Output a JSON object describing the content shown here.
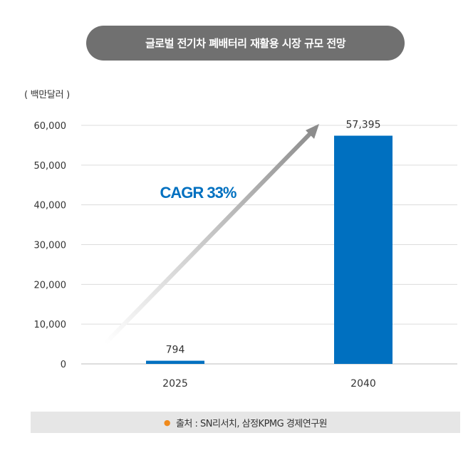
{
  "header": {
    "title": "글로벌 전기차 폐배터리 재활용 시장 규모 전망"
  },
  "unit_label": "( 백만달러 )",
  "annotation": {
    "text": "CAGR 33%"
  },
  "source": {
    "bullet": "●",
    "text": "출처 : SN리서치, 삼정KPMG 경제연구원"
  },
  "colors": {
    "bar": "#0070c0",
    "annotation": "#0070c0",
    "title_bg": "#707070",
    "arrow": "#8c8c8c"
  },
  "chart_data": {
    "type": "bar",
    "categories": [
      "2025",
      "2040"
    ],
    "values": [
      794,
      57395
    ],
    "value_labels": [
      "794",
      "57,395"
    ],
    "ylim": [
      0,
      60000
    ],
    "yticks": [
      0,
      10000,
      20000,
      30000,
      40000,
      50000,
      60000
    ],
    "ytick_labels": [
      "0",
      "10,000",
      "20,000",
      "30,000",
      "40,000",
      "50,000",
      "60,000"
    ],
    "ylabel": "( 백만달러 )",
    "grid": true
  }
}
